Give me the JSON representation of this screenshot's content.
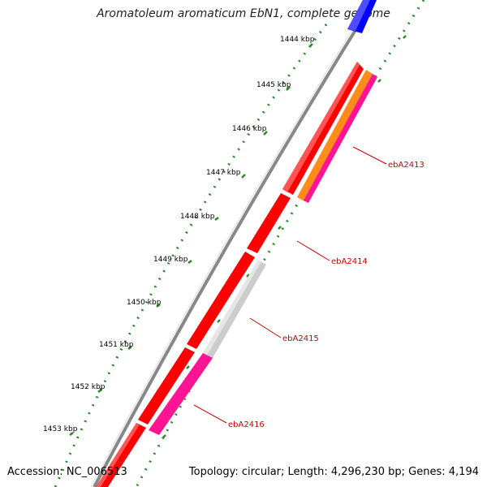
{
  "title": "Aromatoleum aromaticum EbN1, complete genome",
  "footer": {
    "accession": "Accession: NC_006513",
    "summary": "Topology: circular; Length: 4,296,230 bp; Genes: 4,194"
  },
  "ticks": [
    "1444 kbp",
    "1445 kbp",
    "1446 kbp",
    "1447 kbp",
    "1448 kbp",
    "1449 kbp",
    "1450 kbp",
    "1451 kbp",
    "1452 kbp",
    "1453 kbp"
  ],
  "gene_labels": [
    "ebA2413",
    "ebA2414",
    "ebA2415",
    "ebA2416"
  ],
  "colors": {
    "cds_red": "#ff0000",
    "orange": "#ff8c1a",
    "magenta": "#ff1493",
    "grey": "#cccccc",
    "blue": "#0000ff",
    "tick_green": "#2a8a2a",
    "label_red": "#cc0000",
    "backbone": "#888888"
  }
}
